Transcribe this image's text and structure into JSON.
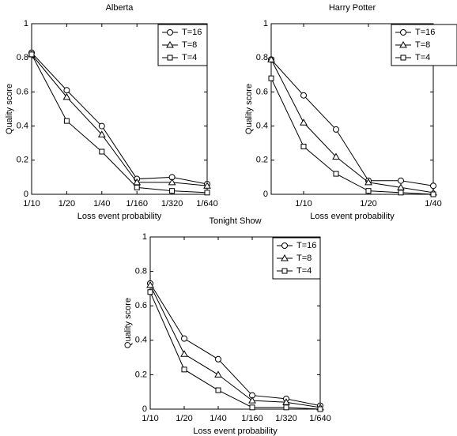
{
  "chart_data": [
    {
      "type": "line",
      "title": "Alberta",
      "x_label": "Loss event probability",
      "y_label": "Quality score",
      "categories": [
        "1/10",
        "1/20",
        "1/40",
        "1/160",
        "1/320",
        "1/640"
      ],
      "ylim": [
        0,
        1
      ],
      "yticks": [
        0,
        0.2,
        0.4,
        0.6,
        0.8,
        1
      ],
      "legend": "upper right",
      "series": [
        {
          "name": "T=16",
          "color": "#000000",
          "marker": "circle",
          "values": [
            0.83,
            0.61,
            0.4,
            0.09,
            0.1,
            0.06
          ]
        },
        {
          "name": "T=8",
          "color": "#000000",
          "marker": "triangle",
          "values": [
            0.82,
            0.57,
            0.35,
            0.07,
            0.07,
            0.05
          ]
        },
        {
          "name": "T=4",
          "color": "#000000",
          "marker": "square",
          "values": [
            0.82,
            0.43,
            0.25,
            0.04,
            0.02,
            0.01
          ]
        }
      ]
    },
    {
      "type": "line",
      "title": "Harry Potter",
      "x_label": "Loss event probability",
      "y_label": "Quality score",
      "categories": [
        null,
        "1/10",
        null,
        "1/20",
        null,
        "1/40"
      ],
      "ylim": [
        0,
        1
      ],
      "yticks": [
        0,
        0.2,
        0.4,
        0.6,
        0.8,
        1
      ],
      "legend": "upper right",
      "series": [
        {
          "name": "T=16",
          "color": "#000000",
          "marker": "circle",
          "values": [
            0.79,
            0.58,
            0.38,
            0.08,
            0.08,
            0.05
          ]
        },
        {
          "name": "T=8",
          "color": "#000000",
          "marker": "triangle",
          "values": [
            0.79,
            0.42,
            0.22,
            0.07,
            0.04,
            0.01
          ]
        },
        {
          "name": "T=4",
          "color": "#000000",
          "marker": "square",
          "values": [
            0.68,
            0.28,
            0.12,
            0.02,
            0.01,
            0.0
          ]
        }
      ]
    },
    {
      "type": "line",
      "title": "Tonight Show",
      "x_label": "Loss event probability",
      "y_label": "Quality score",
      "categories": [
        "1/10",
        "1/20",
        "1/40",
        "1/160",
        "1/320",
        "1/640"
      ],
      "ylim": [
        0,
        1
      ],
      "yticks": [
        0,
        0.2,
        0.4,
        0.6,
        0.8,
        1
      ],
      "legend": "upper right",
      "series": [
        {
          "name": "T=16",
          "color": "#000000",
          "marker": "circle",
          "values": [
            0.73,
            0.41,
            0.29,
            0.08,
            0.06,
            0.02
          ]
        },
        {
          "name": "T=8",
          "color": "#000000",
          "marker": "triangle",
          "values": [
            0.72,
            0.32,
            0.2,
            0.05,
            0.04,
            0.01
          ]
        },
        {
          "name": "T=4",
          "color": "#000000",
          "marker": "square",
          "values": [
            0.68,
            0.23,
            0.11,
            0.01,
            0.01,
            0.0
          ]
        }
      ]
    }
  ]
}
